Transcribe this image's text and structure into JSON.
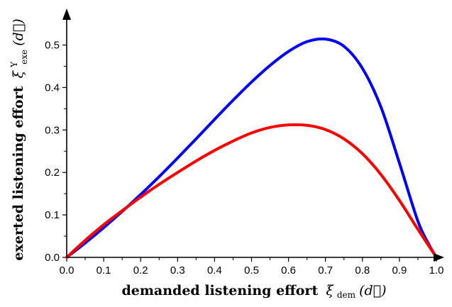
{
  "chart_data": {
    "type": "line",
    "xlabel": "demanded listening effort ξdem(d⃗)",
    "xlabel_text": "demanded listening effort",
    "xlabel_math": {
      "symbol": "ξ",
      "subscript": "dem",
      "argument": "(d⃗)"
    },
    "ylabel": "exerted listening effort ξexeΥ(d⃗)",
    "ylabel_text": "exerted listening effort",
    "ylabel_math": {
      "symbol": "ξ",
      "subscript": "exe",
      "superscript": "Υ",
      "argument": "(d⃗)"
    },
    "xlim": [
      0,
      1.0
    ],
    "ylim": [
      0,
      0.55
    ],
    "xticks": [
      "0.0",
      "0.1",
      "0.2",
      "0.3",
      "0.4",
      "0.5",
      "0.6",
      "0.7",
      "0.8",
      "0.9",
      "1.0"
    ],
    "yticks": [
      "0.0",
      "0.1",
      "0.2",
      "0.3",
      "0.4",
      "0.5"
    ],
    "grid": false,
    "series": [
      {
        "color": "#0000ff",
        "x": [
          0.0,
          0.05,
          0.1,
          0.15,
          0.2,
          0.25,
          0.3,
          0.35,
          0.4,
          0.45,
          0.5,
          0.55,
          0.6,
          0.65,
          0.7,
          0.75,
          0.8,
          0.85,
          0.9,
          0.95,
          0.98,
          1.0
        ],
        "y": [
          0.0,
          0.034,
          0.07,
          0.108,
          0.148,
          0.19,
          0.234,
          0.279,
          0.325,
          0.37,
          0.413,
          0.452,
          0.485,
          0.508,
          0.514,
          0.497,
          0.445,
          0.354,
          0.222,
          0.085,
          0.03,
          0.0
        ]
      },
      {
        "color": "#ff0000",
        "x": [
          0.0,
          0.05,
          0.1,
          0.15,
          0.2,
          0.25,
          0.3,
          0.35,
          0.4,
          0.45,
          0.5,
          0.55,
          0.6,
          0.65,
          0.7,
          0.75,
          0.8,
          0.85,
          0.9,
          0.95,
          1.0
        ],
        "y": [
          0.0,
          0.04,
          0.077,
          0.11,
          0.142,
          0.172,
          0.2,
          0.227,
          0.252,
          0.274,
          0.293,
          0.306,
          0.312,
          0.311,
          0.301,
          0.279,
          0.244,
          0.195,
          0.134,
          0.066,
          0.0
        ]
      }
    ]
  }
}
